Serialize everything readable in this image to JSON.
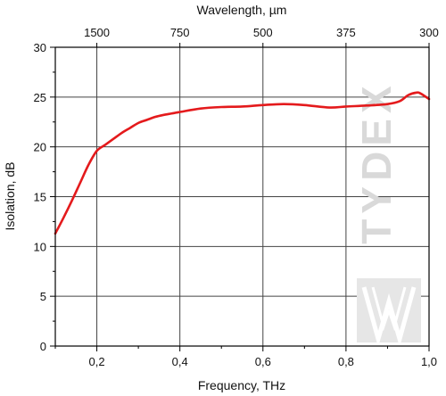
{
  "chart_data": {
    "type": "line",
    "title": "",
    "xlabel": "Frequency, THz",
    "ylabel": "Isolation, dB",
    "x2label": "Wavelength, µm",
    "xlim": [
      0.1,
      1.0
    ],
    "ylim": [
      0,
      30
    ],
    "grid": true,
    "x_ticks": [
      0.2,
      0.4,
      0.6,
      0.8,
      1.0
    ],
    "x_tick_labels": [
      "0,2",
      "0,4",
      "0,6",
      "0,8",
      "1,0"
    ],
    "y_ticks": [
      0,
      5,
      10,
      15,
      20,
      25,
      30
    ],
    "y_tick_labels": [
      "0",
      "5",
      "10",
      "15",
      "20",
      "25",
      "30"
    ],
    "x2_ticks": [
      0.2,
      0.4,
      0.6,
      0.8,
      1.0
    ],
    "x2_tick_labels": [
      "1500",
      "750",
      "500",
      "375",
      "300"
    ],
    "series": [
      {
        "color": "#e41a1c",
        "x": [
          0.1,
          0.12,
          0.14,
          0.16,
          0.18,
          0.2,
          0.22,
          0.24,
          0.26,
          0.28,
          0.3,
          0.32,
          0.34,
          0.36,
          0.38,
          0.4,
          0.45,
          0.5,
          0.55,
          0.6,
          0.65,
          0.7,
          0.76,
          0.8,
          0.85,
          0.9,
          0.93,
          0.95,
          0.97,
          0.98,
          1.0
        ],
        "y": [
          11.3,
          12.9,
          14.6,
          16.4,
          18.2,
          19.6,
          20.2,
          20.8,
          21.4,
          21.9,
          22.4,
          22.7,
          23.0,
          23.2,
          23.35,
          23.5,
          23.85,
          24.0,
          24.05,
          24.2,
          24.3,
          24.2,
          23.95,
          24.05,
          24.15,
          24.3,
          24.6,
          25.2,
          25.45,
          25.35,
          24.8
        ]
      }
    ]
  },
  "watermark": {
    "text": "TYDEX",
    "color": "#d9d9d9"
  }
}
